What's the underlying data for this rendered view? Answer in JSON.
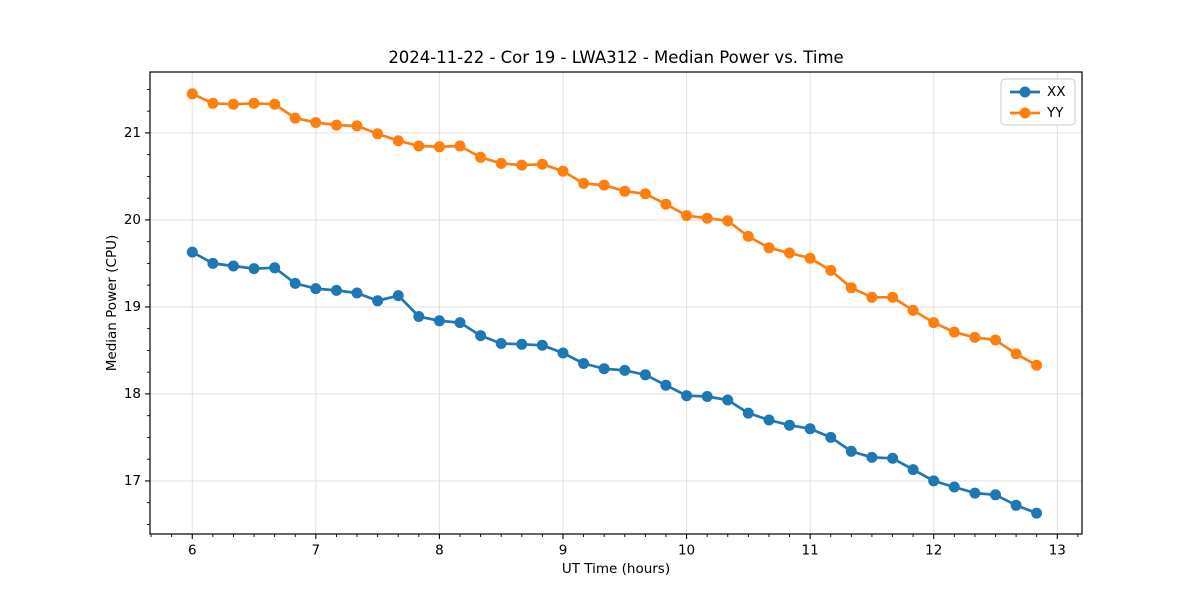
{
  "chart_data": {
    "type": "line",
    "title": "2024-11-22 - Cor 19 - LWA312 - Median Power vs. Time",
    "xlabel": "UT Time (hours)",
    "ylabel": "Median Power (CPU)",
    "x": [
      6.0,
      6.167,
      6.333,
      6.5,
      6.667,
      6.833,
      7.0,
      7.167,
      7.333,
      7.5,
      7.667,
      7.833,
      8.0,
      8.167,
      8.333,
      8.5,
      8.667,
      8.833,
      9.0,
      9.167,
      9.333,
      9.5,
      9.667,
      9.833,
      10.0,
      10.167,
      10.333,
      10.5,
      10.667,
      10.833,
      11.0,
      11.167,
      11.333,
      11.5,
      11.667,
      11.833,
      12.0,
      12.167,
      12.333,
      12.5,
      12.667,
      12.833
    ],
    "series": [
      {
        "name": "XX",
        "color": "#1f77b4",
        "values": [
          19.63,
          19.5,
          19.47,
          19.44,
          19.45,
          19.27,
          19.21,
          19.19,
          19.16,
          19.07,
          19.13,
          18.89,
          18.84,
          18.82,
          18.67,
          18.58,
          18.57,
          18.56,
          18.47,
          18.35,
          18.29,
          18.27,
          18.22,
          18.1,
          17.98,
          17.97,
          17.93,
          17.78,
          17.7,
          17.64,
          17.6,
          17.5,
          17.34,
          17.27,
          17.26,
          17.13,
          17.0,
          16.93,
          16.86,
          16.84,
          16.72,
          16.63
        ]
      },
      {
        "name": "YY",
        "color": "#ff7f0e",
        "values": [
          21.45,
          21.34,
          21.33,
          21.34,
          21.33,
          21.17,
          21.12,
          21.09,
          21.08,
          20.99,
          20.91,
          20.85,
          20.84,
          20.85,
          20.72,
          20.65,
          20.63,
          20.64,
          20.56,
          20.42,
          20.4,
          20.33,
          20.3,
          20.18,
          20.05,
          20.02,
          19.99,
          19.81,
          19.68,
          19.62,
          19.56,
          19.42,
          19.22,
          19.11,
          19.11,
          18.96,
          18.82,
          18.71,
          18.65,
          18.62,
          18.46,
          18.33
        ]
      }
    ],
    "xticks": [
      6,
      7,
      8,
      9,
      10,
      11,
      12,
      13
    ],
    "yticks": [
      17,
      18,
      19,
      20,
      21
    ],
    "xlim": [
      5.658,
      13.2
    ],
    "ylim": [
      16.39,
      21.7
    ],
    "grid": true,
    "legend_position": "upper right",
    "legend_labels": [
      "XX",
      "YY"
    ]
  },
  "style": {
    "grid_color": "#e0e0e0",
    "spine_color": "#000000",
    "text_color": "#000000",
    "legend_border_color": "#cccccc",
    "background": "#ffffff"
  }
}
